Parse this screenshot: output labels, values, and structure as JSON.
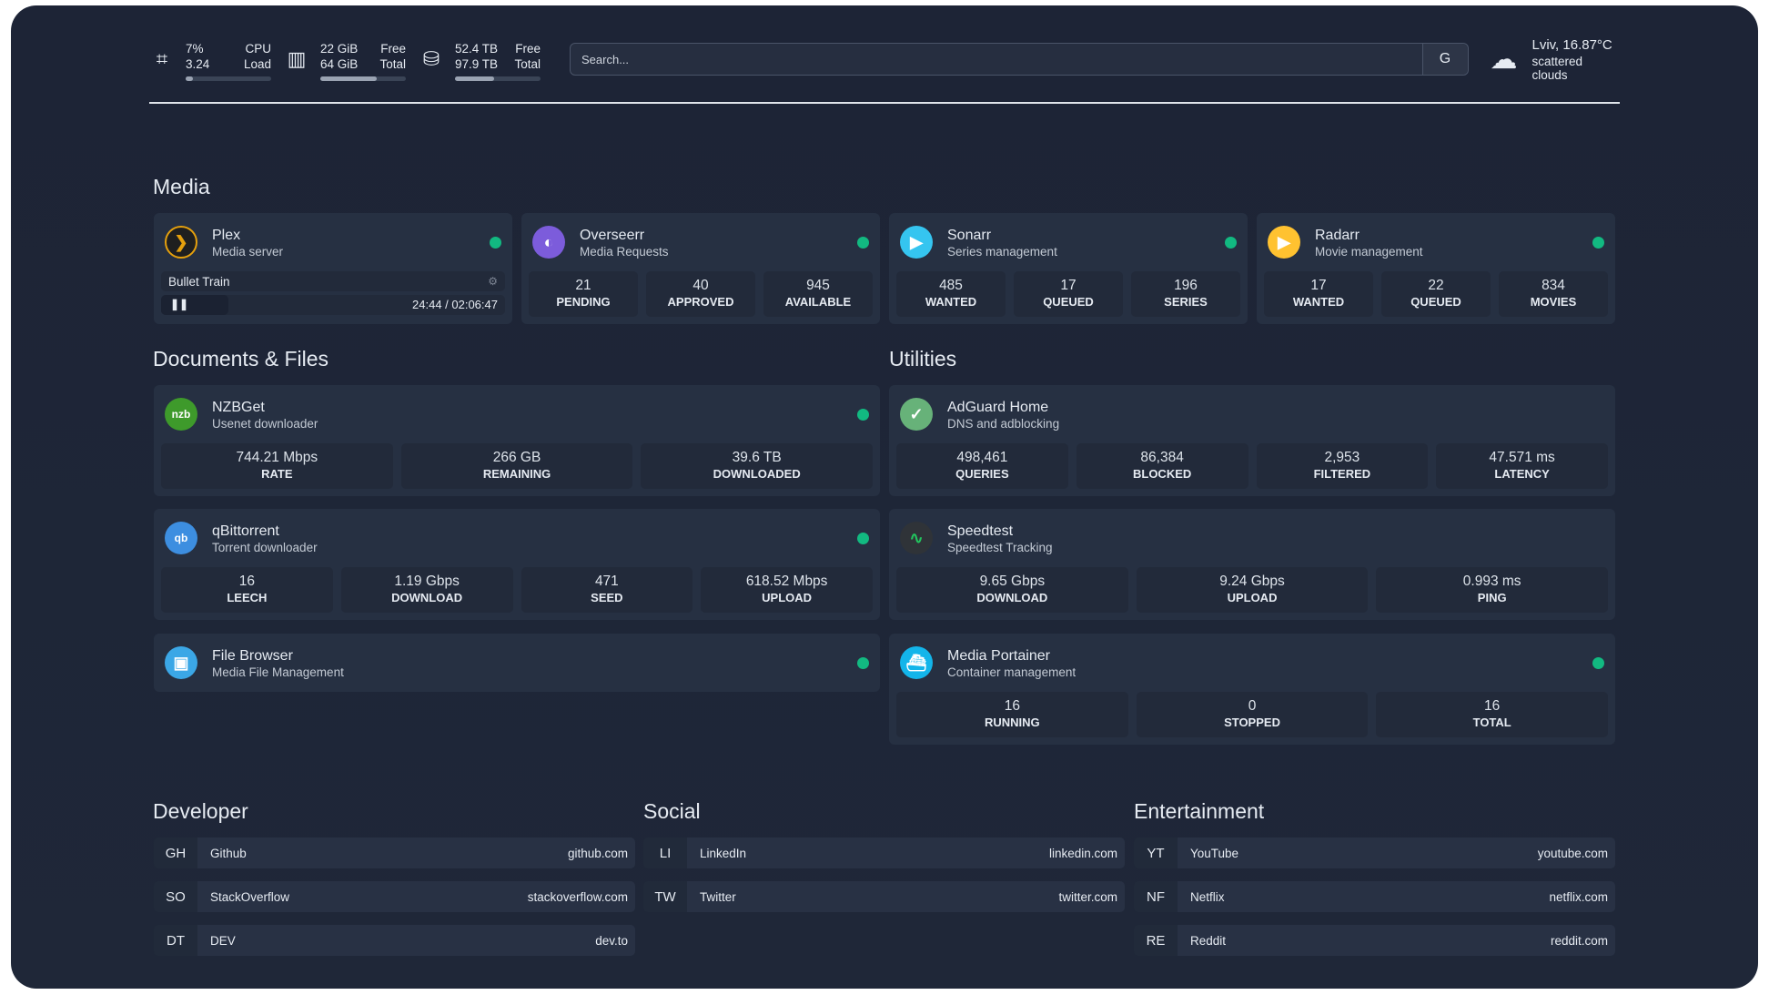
{
  "resources": [
    {
      "icon": "cpu-icon",
      "v1": "7%",
      "l1": "CPU",
      "v2": "3.24",
      "l2": "Load",
      "fill": 0.07
    },
    {
      "icon": "memory-icon",
      "v1": "22 GiB",
      "l1": "Free",
      "v2": "64 GiB",
      "l2": "Total",
      "fill": 0.66
    },
    {
      "icon": "disk-icon",
      "v1": "52.4 TB",
      "l1": "Free",
      "v2": "97.9 TB",
      "l2": "Total",
      "fill": 0.46
    }
  ],
  "search": {
    "placeholder": "Search...",
    "provider_label": "G"
  },
  "weather": {
    "location_temp": "Lviv, 16.87°C",
    "condition": "scattered clouds"
  },
  "sections": {
    "media": "Media",
    "documents": "Documents & Files",
    "utilities": "Utilities",
    "developer": "Developer",
    "social": "Social",
    "entertainment": "Entertainment"
  },
  "plex": {
    "title": "Plex",
    "subtitle": "Media server",
    "status": "online",
    "now_playing": "Bullet Train",
    "time": "24:44 / 02:06:47",
    "progress": 0.195
  },
  "services": [
    {
      "id": "overseerr",
      "title": "Overseerr",
      "subtitle": "Media Requests",
      "icon_color": "#7c5cdb",
      "glyph": "◐",
      "stats": [
        [
          "21",
          "PENDING"
        ],
        [
          "40",
          "APPROVED"
        ],
        [
          "945",
          "AVAILABLE"
        ]
      ]
    },
    {
      "id": "sonarr",
      "title": "Sonarr",
      "subtitle": "Series management",
      "icon_color": "#35c5f0",
      "glyph": "▶",
      "stats": [
        [
          "485",
          "WANTED"
        ],
        [
          "17",
          "QUEUED"
        ],
        [
          "196",
          "SERIES"
        ]
      ]
    },
    {
      "id": "radarr",
      "title": "Radarr",
      "subtitle": "Movie management",
      "icon_color": "#ffc230",
      "glyph": "▶",
      "stats": [
        [
          "17",
          "WANTED"
        ],
        [
          "22",
          "QUEUED"
        ],
        [
          "834",
          "MOVIES"
        ]
      ]
    },
    {
      "id": "nzbget",
      "title": "NZBGet",
      "subtitle": "Usenet downloader",
      "icon_color": "#3e9a2b",
      "glyph": "nzb",
      "stats": [
        [
          "744.21 Mbps",
          "RATE"
        ],
        [
          "266 GB",
          "REMAINING"
        ],
        [
          "39.6 TB",
          "DOWNLOADED"
        ]
      ]
    },
    {
      "id": "qbittorrent",
      "title": "qBittorrent",
      "subtitle": "Torrent downloader",
      "icon_color": "#3d8ee0",
      "glyph": "qb",
      "stats": [
        [
          "16",
          "LEECH"
        ],
        [
          "1.19 Gbps",
          "DOWNLOAD"
        ],
        [
          "471",
          "SEED"
        ],
        [
          "618.52 Mbps",
          "UPLOAD"
        ]
      ]
    },
    {
      "id": "filebrowser",
      "title": "File Browser",
      "subtitle": "Media File Management",
      "icon_color": "#3ba7e6",
      "glyph": "▣",
      "stats": []
    },
    {
      "id": "adguard",
      "title": "AdGuard Home",
      "subtitle": "DNS and adblocking",
      "icon_color": "#67b279",
      "glyph": "✓",
      "stats": [
        [
          "498,461",
          "QUERIES"
        ],
        [
          "86,384",
          "BLOCKED"
        ],
        [
          "2,953",
          "FILTERED"
        ],
        [
          "47.571 ms",
          "LATENCY"
        ]
      ],
      "no_dot": true
    },
    {
      "id": "speedtest",
      "title": "Speedtest",
      "subtitle": "Speedtest Tracking",
      "icon_color": "#2f3338",
      "glyph": "∿",
      "stats": [
        [
          "9.65 Gbps",
          "DOWNLOAD"
        ],
        [
          "9.24 Gbps",
          "UPLOAD"
        ],
        [
          "0.993 ms",
          "PING"
        ]
      ],
      "no_dot": true
    },
    {
      "id": "portainer",
      "title": "Media Portainer",
      "subtitle": "Container management",
      "icon_color": "#13b5ea",
      "glyph": "⛴",
      "stats": [
        [
          "16",
          "RUNNING"
        ],
        [
          "0",
          "STOPPED"
        ],
        [
          "16",
          "TOTAL"
        ]
      ]
    }
  ],
  "bookmarks": [
    [
      {
        "abbr": "GH",
        "name": "Github",
        "url": "github.com"
      },
      {
        "abbr": "SO",
        "name": "StackOverflow",
        "url": "stackoverflow.com"
      },
      {
        "abbr": "DT",
        "name": "DEV",
        "url": "dev.to"
      }
    ],
    [
      {
        "abbr": "LI",
        "name": "LinkedIn",
        "url": "linkedin.com"
      },
      {
        "abbr": "TW",
        "name": "Twitter",
        "url": "twitter.com"
      }
    ],
    [
      {
        "abbr": "YT",
        "name": "YouTube",
        "url": "youtube.com"
      },
      {
        "abbr": "NF",
        "name": "Netflix",
        "url": "netflix.com"
      },
      {
        "abbr": "RE",
        "name": "Reddit",
        "url": "reddit.com"
      }
    ]
  ],
  "colors": {
    "status_online": "#12b981",
    "plex": "#e5a00d"
  }
}
